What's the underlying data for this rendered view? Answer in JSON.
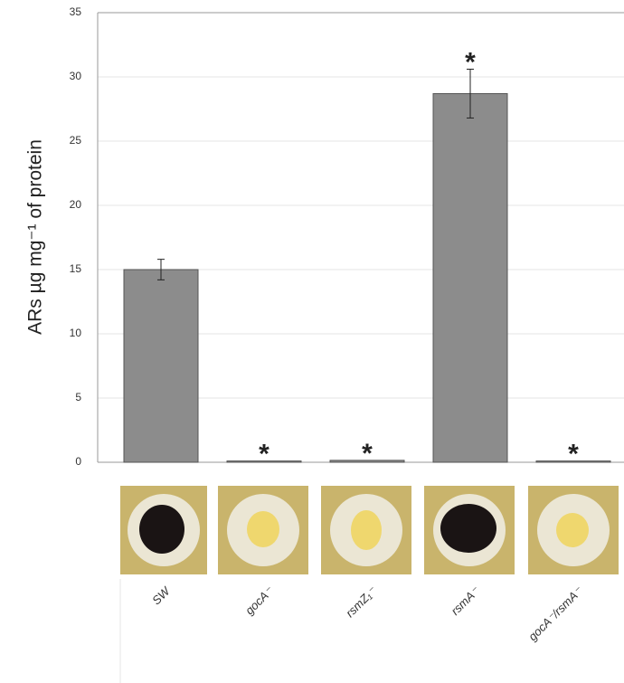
{
  "chart_data": {
    "type": "bar",
    "y_label": "ARs  µg mg⁻¹ of protein",
    "categories": [
      "SW",
      "gocA⁻",
      "rsmZ₁⁻",
      "rsmA⁻",
      "gocA⁻/rsmA⁻"
    ],
    "values": [
      15,
      0.1,
      0.15,
      28.7,
      0.1
    ],
    "errors": [
      0.8,
      0,
      0,
      1.9,
      0
    ],
    "significance": [
      null,
      "*",
      "*",
      "*",
      "*"
    ],
    "color": "#8c8c8c",
    "ylim": [
      0,
      35
    ],
    "yticks": [
      0,
      5,
      10,
      15,
      20,
      25,
      30,
      35
    ],
    "grid": true
  }
}
